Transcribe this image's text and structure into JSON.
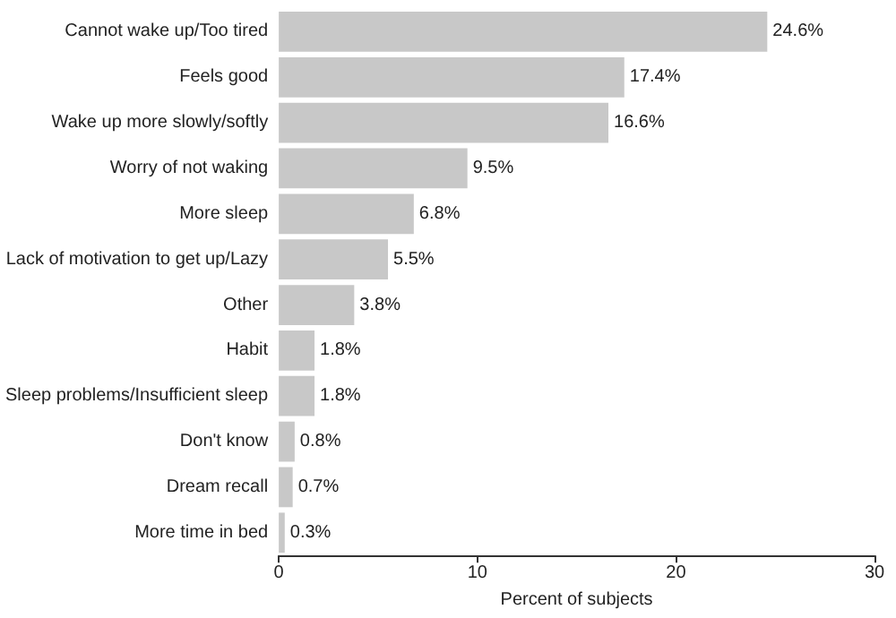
{
  "chart_data": {
    "type": "bar",
    "orientation": "horizontal",
    "xlabel": "Percent of subjects",
    "categories": [
      "Cannot wake up/Too tired",
      "Feels good",
      "Wake up more slowly/softly",
      "Worry of not waking",
      "More sleep",
      "Lack of motivation to get up/Lazy",
      "Other",
      "Habit",
      "Sleep problems/Insufficient sleep",
      "Don't know",
      "Dream recall",
      "More time in bed"
    ],
    "values": [
      24.6,
      17.4,
      16.6,
      9.5,
      6.8,
      5.5,
      3.8,
      1.8,
      1.8,
      0.8,
      0.7,
      0.3
    ],
    "value_labels": [
      "24.6%",
      "17.4%",
      "16.6%",
      "9.5%",
      "6.8%",
      "5.5%",
      "3.8%",
      "1.8%",
      "1.8%",
      "0.8%",
      "0.7%",
      "0.3%"
    ],
    "color": "#c8c8c8",
    "xlim": [
      0,
      30
    ],
    "xticks": [
      0,
      10,
      20,
      30
    ],
    "grid": false
  }
}
